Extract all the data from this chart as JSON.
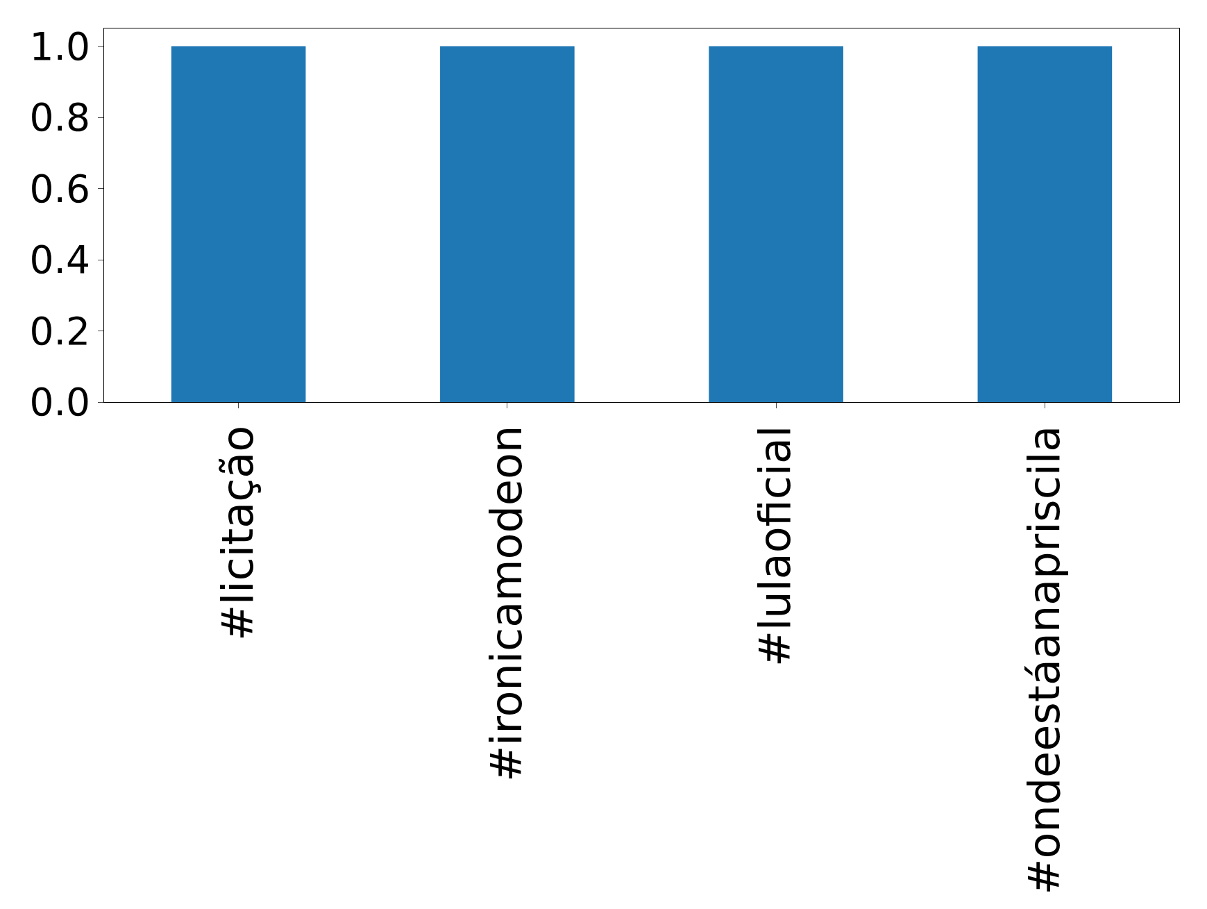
{
  "chart_data": {
    "type": "bar",
    "categories": [
      "#licitação",
      "#ironicamodeon",
      "#lulaoficial",
      "#ondeestáanapriscila"
    ],
    "values": [
      1,
      1,
      1,
      1
    ],
    "color": "#1f77b4",
    "ylim": [
      0,
      1.05
    ],
    "yticks": [
      {
        "value": 0,
        "label": "0.0"
      },
      {
        "value": 0.2,
        "label": "0.2"
      },
      {
        "value": 0.4,
        "label": "0.4"
      },
      {
        "value": 0.6,
        "label": "0.6"
      },
      {
        "value": 0.8,
        "label": "0.8"
      },
      {
        "value": 1,
        "label": "1.0"
      }
    ],
    "grid": false
  }
}
